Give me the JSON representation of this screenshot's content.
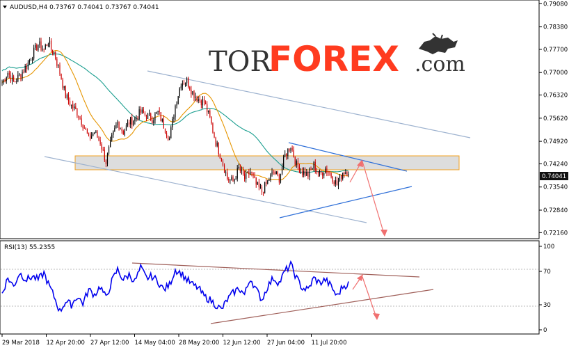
{
  "chart_data": [
    {
      "type": "candlestick",
      "title": "AUDUSD,H4  0.73767 0.74041 0.73767 0.74041",
      "symbol": "AUDUSD",
      "timeframe": "H4",
      "ylim": [
        0.7202,
        0.7915
      ],
      "y_ticks": [
        "0.79080",
        "0.78380",
        "0.77700",
        "0.77000",
        "0.76320",
        "0.75620",
        "0.74920",
        "0.74240",
        "0.73540",
        "0.72840",
        "0.72160"
      ],
      "x_ticks": [
        "29 Mar 2018",
        "12 Apr 20:00",
        "27 Apr 12:00",
        "14 May 04:00",
        "28 May 20:00",
        "12 Jun 12:00",
        "27 Jun 04:00",
        "11 Jul 20:00"
      ],
      "current_price": "0.74041",
      "price_path": [
        [
          0,
          0.767
        ],
        [
          4,
          0.77
        ],
        [
          8,
          0.767
        ],
        [
          12,
          0.769
        ],
        [
          17,
          0.772
        ],
        [
          21,
          0.7755
        ],
        [
          25,
          0.7785
        ],
        [
          29,
          0.777
        ],
        [
          32,
          0.7795
        ],
        [
          34,
          0.777
        ],
        [
          36,
          0.776
        ],
        [
          40,
          0.77
        ],
        [
          44,
          0.763
        ],
        [
          48,
          0.76
        ],
        [
          52,
          0.758
        ],
        [
          56,
          0.7545
        ],
        [
          60,
          0.75
        ],
        [
          64,
          0.752
        ],
        [
          68,
          0.749
        ],
        [
          72,
          0.743
        ],
        [
          76,
          0.75
        ],
        [
          80,
          0.755
        ],
        [
          84,
          0.752
        ],
        [
          88,
          0.755
        ],
        [
          92,
          0.756
        ],
        [
          96,
          0.758
        ],
        [
          100,
          0.757
        ],
        [
          104,
          0.756
        ],
        [
          108,
          0.758
        ],
        [
          112,
          0.754
        ],
        [
          116,
          0.75
        ],
        [
          120,
          0.76
        ],
        [
          124,
          0.767
        ],
        [
          128,
          0.7675
        ],
        [
          132,
          0.764
        ],
        [
          136,
          0.762
        ],
        [
          140,
          0.761
        ],
        [
          144,
          0.756
        ],
        [
          148,
          0.749
        ],
        [
          152,
          0.744
        ],
        [
          156,
          0.738
        ],
        [
          160,
          0.737
        ],
        [
          164,
          0.741
        ],
        [
          168,
          0.738
        ],
        [
          172,
          0.74
        ],
        [
          176,
          0.736
        ],
        [
          180,
          0.734
        ],
        [
          184,
          0.737
        ],
        [
          188,
          0.74
        ],
        [
          192,
          0.738
        ],
        [
          196,
          0.745
        ],
        [
          200,
          0.748
        ],
        [
          204,
          0.742
        ],
        [
          208,
          0.74
        ],
        [
          212,
          0.739
        ],
        [
          216,
          0.742
        ],
        [
          220,
          0.739
        ],
        [
          224,
          0.741
        ],
        [
          228,
          0.739
        ],
        [
          232,
          0.736
        ],
        [
          236,
          0.74
        ],
        [
          240,
          0.7404
        ]
      ],
      "rsi": {
        "label": "RSI(13) 55.2355",
        "ylim": [
          0,
          100
        ],
        "y_ticks": [
          "100",
          "70",
          "30",
          "0"
        ],
        "path": [
          [
            0,
            44
          ],
          [
            4,
            62
          ],
          [
            8,
            52
          ],
          [
            12,
            68
          ],
          [
            17,
            60
          ],
          [
            21,
            64
          ],
          [
            25,
            60
          ],
          [
            29,
            68
          ],
          [
            32,
            55
          ],
          [
            36,
            40
          ],
          [
            40,
            22
          ],
          [
            44,
            34
          ],
          [
            48,
            30
          ],
          [
            52,
            40
          ],
          [
            56,
            32
          ],
          [
            60,
            48
          ],
          [
            64,
            42
          ],
          [
            68,
            52
          ],
          [
            72,
            38
          ],
          [
            76,
            58
          ],
          [
            80,
            72
          ],
          [
            84,
            60
          ],
          [
            88,
            66
          ],
          [
            92,
            58
          ],
          [
            96,
            74
          ],
          [
            100,
            62
          ],
          [
            104,
            64
          ],
          [
            108,
            58
          ],
          [
            112,
            48
          ],
          [
            116,
            54
          ],
          [
            120,
            72
          ],
          [
            124,
            68
          ],
          [
            128,
            60
          ],
          [
            132,
            54
          ],
          [
            136,
            50
          ],
          [
            140,
            40
          ],
          [
            144,
            36
          ],
          [
            148,
            30
          ],
          [
            152,
            24
          ],
          [
            156,
            36
          ],
          [
            160,
            44
          ],
          [
            164,
            50
          ],
          [
            168,
            42
          ],
          [
            172,
            62
          ],
          [
            176,
            48
          ],
          [
            180,
            36
          ],
          [
            184,
            52
          ],
          [
            188,
            62
          ],
          [
            192,
            56
          ],
          [
            196,
            70
          ],
          [
            200,
            78
          ],
          [
            204,
            62
          ],
          [
            208,
            50
          ],
          [
            212,
            48
          ],
          [
            216,
            62
          ],
          [
            220,
            56
          ],
          [
            224,
            60
          ],
          [
            228,
            52
          ],
          [
            232,
            40
          ],
          [
            236,
            52
          ],
          [
            240,
            55
          ]
        ]
      }
    }
  ],
  "logo": {
    "prefix": "TOR",
    "main": "FOREX",
    "suffix": ".com"
  },
  "colors": {
    "bull": "#000000",
    "bear": "#cc0000",
    "ma_fast": "#e69500",
    "ma_slow": "#1a9e8f",
    "rsi": "#0000ee",
    "channel": "#9db2cf",
    "trend_blue": "#2e6fd8",
    "zone_fill": "#cfcfcf",
    "zone_edge": "#f0a020",
    "arrow": "#f07070",
    "rsi_line": "#a0605a",
    "price_box": "#111111"
  }
}
